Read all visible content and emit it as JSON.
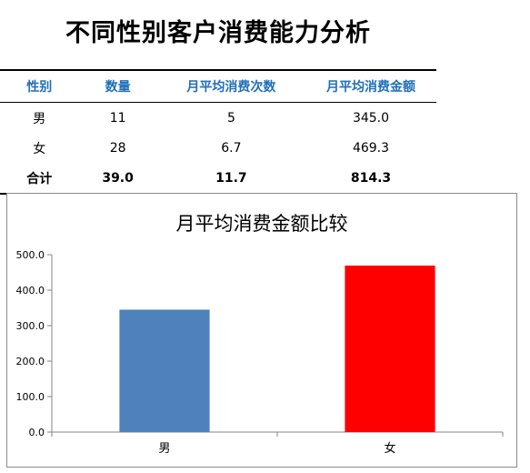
{
  "page": {
    "title": "不同性别客户消费能力分析"
  },
  "table": {
    "headers": [
      "性别",
      "数量",
      "月平均消费次数",
      "月平均消费金额"
    ],
    "rows": [
      [
        "男",
        "11",
        "5",
        "345.0"
      ],
      [
        "女",
        "28",
        "6.7",
        "469.3"
      ]
    ],
    "total": [
      "合计",
      "39.0",
      "11.7",
      "814.3"
    ]
  },
  "chart_data": {
    "type": "bar",
    "title": "月平均消费金额比较",
    "categories": [
      "男",
      "女"
    ],
    "values": [
      345.0,
      469.3
    ],
    "bar_colors": [
      "#4f81bd",
      "#ff0000"
    ],
    "ylim": [
      0,
      500
    ],
    "yticks": [
      "0.0",
      "100.0",
      "200.0",
      "300.0",
      "400.0",
      "500.0"
    ],
    "xlabel": "",
    "ylabel": "",
    "grid": false,
    "legend": "none"
  }
}
